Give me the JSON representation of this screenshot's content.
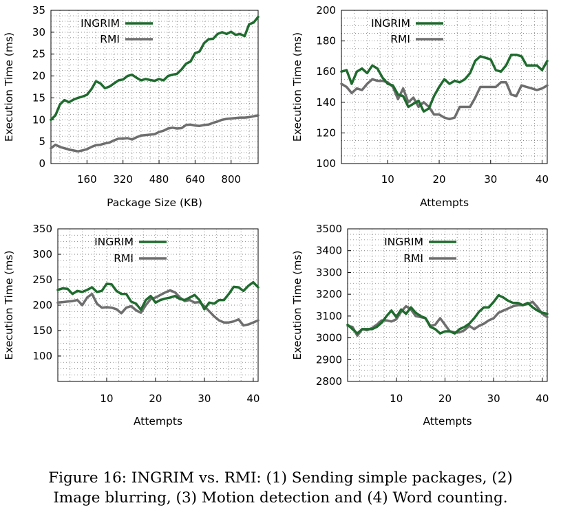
{
  "chart_data": [
    {
      "type": "line",
      "xlabel": "Package Size (KB)",
      "ylabel": "Execution Time (ms)",
      "xlim": [
        0,
        920
      ],
      "ylim": [
        0,
        35
      ],
      "xticks": [
        160,
        320,
        480,
        640,
        800
      ],
      "yticks": [
        0,
        5,
        10,
        15,
        20,
        25,
        30,
        35
      ],
      "legend_position": "top-left",
      "series": [
        {
          "name": "INGRIM",
          "color": "#1f6b2e",
          "x": [
            0,
            20,
            40,
            60,
            80,
            100,
            120,
            140,
            160,
            180,
            200,
            220,
            240,
            260,
            280,
            300,
            320,
            340,
            360,
            380,
            400,
            420,
            440,
            460,
            480,
            500,
            520,
            540,
            560,
            580,
            600,
            620,
            640,
            660,
            680,
            700,
            720,
            740,
            760,
            780,
            800,
            820,
            840,
            860,
            880,
            900,
            920
          ],
          "values": [
            10,
            11,
            13.5,
            14.5,
            14,
            14.6,
            15,
            15.3,
            15.7,
            17,
            18.8,
            18.3,
            17.2,
            17.6,
            18.3,
            19,
            19.2,
            20,
            20.3,
            19.6,
            19,
            19.3,
            19.1,
            18.9,
            19.3,
            19,
            20,
            20.3,
            20.5,
            21.5,
            22.8,
            23.3,
            25.2,
            25.6,
            27.5,
            28.4,
            28.5,
            29.6,
            30,
            29.6,
            30.1,
            29.4,
            29.6,
            29.1,
            31.8,
            32.2,
            33.5
          ]
        },
        {
          "name": "RMI",
          "color": "#6e6e6e",
          "x": [
            0,
            20,
            40,
            60,
            80,
            100,
            120,
            140,
            160,
            180,
            200,
            220,
            240,
            260,
            280,
            300,
            320,
            340,
            360,
            380,
            400,
            420,
            440,
            460,
            480,
            500,
            520,
            540,
            560,
            580,
            600,
            620,
            640,
            660,
            680,
            700,
            720,
            740,
            760,
            780,
            800,
            820,
            840,
            860,
            880,
            900,
            920
          ],
          "values": [
            3.5,
            4.3,
            3.8,
            3.5,
            3.2,
            3,
            2.8,
            3,
            3.3,
            3.8,
            4.2,
            4.3,
            4.6,
            4.8,
            5.3,
            5.7,
            5.7,
            5.8,
            5.5,
            6,
            6.4,
            6.5,
            6.6,
            6.7,
            7.2,
            7.5,
            8,
            8.2,
            8,
            8.1,
            8.8,
            8.9,
            8.7,
            8.6,
            8.8,
            8.9,
            9.3,
            9.6,
            10,
            10.2,
            10.3,
            10.4,
            10.5,
            10.5,
            10.6,
            10.8,
            11
          ]
        }
      ]
    },
    {
      "type": "line",
      "xlabel": "Attempts",
      "ylabel": "Execution Time (ms)",
      "xlim": [
        1,
        41
      ],
      "ylim": [
        100,
        200
      ],
      "xticks": [
        10,
        20,
        30,
        40
      ],
      "yticks": [
        100,
        120,
        140,
        160,
        180,
        200
      ],
      "legend_position": "top-left",
      "series": [
        {
          "name": "INGRIM",
          "color": "#1f6b2e",
          "x": [
            1,
            2,
            3,
            4,
            5,
            6,
            7,
            8,
            9,
            10,
            11,
            12,
            13,
            14,
            15,
            16,
            17,
            18,
            19,
            20,
            21,
            22,
            23,
            24,
            25,
            26,
            27,
            28,
            29,
            30,
            31,
            32,
            33,
            34,
            35,
            36,
            37,
            38,
            39,
            40,
            41
          ],
          "values": [
            160,
            161,
            152,
            160,
            162,
            159,
            164,
            162,
            156,
            152,
            151,
            145,
            144,
            137,
            139,
            141,
            134,
            136,
            144,
            150,
            155,
            152,
            154,
            153,
            155,
            159,
            167,
            170,
            169,
            168,
            161,
            160,
            164,
            171,
            171,
            170,
            164,
            164,
            164,
            161,
            167
          ]
        },
        {
          "name": "RMI",
          "color": "#6e6e6e",
          "x": [
            1,
            2,
            3,
            4,
            5,
            6,
            7,
            8,
            9,
            10,
            11,
            12,
            13,
            14,
            15,
            16,
            17,
            18,
            19,
            20,
            21,
            22,
            23,
            24,
            25,
            26,
            27,
            28,
            29,
            30,
            31,
            32,
            33,
            34,
            35,
            36,
            37,
            38,
            39,
            40,
            41
          ],
          "values": [
            152,
            150,
            146,
            149,
            148,
            152,
            155,
            154,
            154,
            153,
            150,
            142,
            149,
            140,
            143,
            137,
            140,
            137,
            132,
            132,
            130,
            129,
            130,
            137,
            137,
            137,
            143,
            150,
            150,
            150,
            150,
            153,
            153,
            145,
            144,
            151,
            150,
            149,
            148,
            149,
            151
          ]
        }
      ]
    },
    {
      "type": "line",
      "xlabel": "Attempts",
      "ylabel": "Execution Time (ms)",
      "xlim": [
        0,
        41
      ],
      "ylim": [
        50,
        350
      ],
      "xticks": [
        10,
        20,
        30,
        40
      ],
      "yticks": [
        100,
        150,
        200,
        250,
        300,
        350
      ],
      "legend_position": "top-left",
      "series": [
        {
          "name": "INGRIM",
          "color": "#1f6b2e",
          "x": [
            0,
            1,
            2,
            3,
            4,
            5,
            6,
            7,
            8,
            9,
            10,
            11,
            12,
            13,
            14,
            15,
            16,
            17,
            18,
            19,
            20,
            21,
            22,
            23,
            24,
            25,
            26,
            27,
            28,
            29,
            30,
            31,
            32,
            33,
            34,
            35,
            36,
            37,
            38,
            39,
            40,
            41
          ],
          "values": [
            230,
            233,
            232,
            222,
            228,
            226,
            230,
            235,
            226,
            228,
            242,
            241,
            228,
            222,
            222,
            207,
            203,
            191,
            210,
            218,
            205,
            210,
            213,
            215,
            218,
            212,
            210,
            215,
            220,
            210,
            192,
            205,
            203,
            210,
            210,
            222,
            236,
            235,
            228,
            238,
            245,
            235
          ]
        },
        {
          "name": "RMI",
          "color": "#6e6e6e",
          "x": [
            0,
            1,
            2,
            3,
            4,
            5,
            6,
            7,
            8,
            9,
            10,
            11,
            12,
            13,
            14,
            15,
            16,
            17,
            18,
            19,
            20,
            21,
            22,
            23,
            24,
            25,
            26,
            27,
            28,
            29,
            30,
            31,
            32,
            33,
            34,
            35,
            36,
            37,
            38,
            39,
            40,
            41
          ],
          "values": [
            205,
            206,
            207,
            208,
            210,
            200,
            215,
            222,
            203,
            195,
            196,
            195,
            192,
            184,
            195,
            198,
            190,
            185,
            200,
            212,
            215,
            220,
            225,
            229,
            225,
            215,
            208,
            210,
            205,
            206,
            198,
            188,
            178,
            170,
            166,
            166,
            168,
            172,
            160,
            162,
            166,
            170
          ]
        }
      ]
    },
    {
      "type": "line",
      "xlabel": "Attempts",
      "ylabel": "Execution Time (ms)",
      "xlim": [
        0,
        41
      ],
      "ylim": [
        2800,
        3500
      ],
      "xticks": [
        10,
        20,
        30,
        40
      ],
      "yticks": [
        2800,
        2900,
        3000,
        3100,
        3200,
        3300,
        3400,
        3500
      ],
      "legend_position": "top-left",
      "series": [
        {
          "name": "INGRIM",
          "color": "#1f6b2e",
          "x": [
            0,
            1,
            2,
            3,
            4,
            5,
            6,
            7,
            8,
            9,
            10,
            11,
            12,
            13,
            14,
            15,
            16,
            17,
            18,
            19,
            20,
            21,
            22,
            23,
            24,
            25,
            26,
            27,
            28,
            29,
            30,
            31,
            32,
            33,
            34,
            35,
            36,
            37,
            38,
            39,
            40,
            41
          ],
          "values": [
            3060,
            3040,
            3020,
            3040,
            3040,
            3040,
            3050,
            3070,
            3100,
            3125,
            3095,
            3130,
            3110,
            3140,
            3115,
            3100,
            3090,
            3050,
            3040,
            3020,
            3030,
            3030,
            3020,
            3040,
            3050,
            3065,
            3090,
            3120,
            3140,
            3140,
            3165,
            3195,
            3185,
            3170,
            3160,
            3160,
            3150,
            3160,
            3140,
            3125,
            3115,
            3110
          ]
        },
        {
          "name": "RMI",
          "color": "#6e6e6e",
          "x": [
            0,
            1,
            2,
            3,
            4,
            5,
            6,
            7,
            8,
            9,
            10,
            11,
            12,
            13,
            14,
            15,
            16,
            17,
            18,
            19,
            20,
            21,
            22,
            23,
            24,
            25,
            26,
            27,
            28,
            29,
            30,
            31,
            32,
            33,
            34,
            35,
            36,
            37,
            38,
            39,
            40,
            41
          ],
          "values": [
            3055,
            3050,
            3010,
            3040,
            3035,
            3045,
            3060,
            3080,
            3080,
            3075,
            3085,
            3120,
            3145,
            3130,
            3100,
            3095,
            3090,
            3055,
            3060,
            3090,
            3060,
            3030,
            3025,
            3025,
            3035,
            3055,
            3040,
            3055,
            3065,
            3080,
            3090,
            3115,
            3125,
            3135,
            3145,
            3150,
            3150,
            3155,
            3165,
            3140,
            3110,
            3095
          ]
        }
      ]
    }
  ],
  "caption": {
    "line1": "Figure 16: INGRIM vs. RMI: (1) Sending simple packages, (2)",
    "line2": "Image blurring, (3) Motion detection and (4) Word counting."
  }
}
